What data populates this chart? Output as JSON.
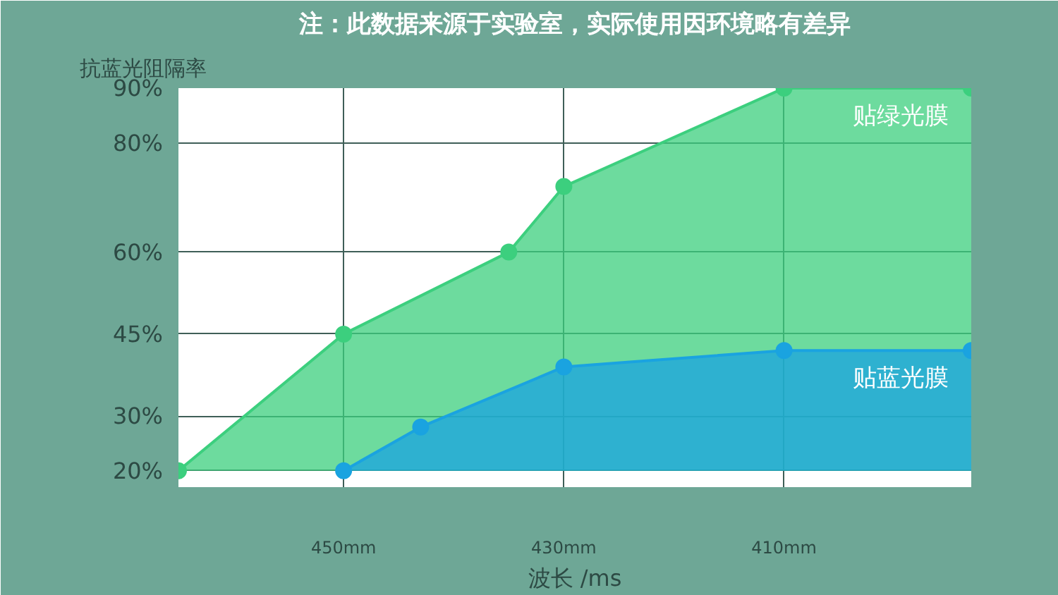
{
  "chart_data": {
    "type": "area",
    "title": "注：此数据来源于实验室，实际使用因环境略有差异",
    "ylabel": "抗蓝光阻隔率",
    "xlabel": "波长 /ms",
    "xlim": [
      465,
      393
    ],
    "xticks": [
      {
        "value": 450,
        "label": "450mm"
      },
      {
        "value": 430,
        "label": "430mm"
      },
      {
        "value": 410,
        "label": "410mm"
      }
    ],
    "ylim": [
      17,
      90
    ],
    "yticks": [
      {
        "value": 20,
        "label": "20%"
      },
      {
        "value": 30,
        "label": "30%"
      },
      {
        "value": 45,
        "label": "45%"
      },
      {
        "value": 60,
        "label": "60%"
      },
      {
        "value": 80,
        "label": "80%"
      },
      {
        "value": 90,
        "label": "90%"
      }
    ],
    "series": [
      {
        "name": "贴绿光膜",
        "color": "#3ccf7e",
        "x": [
          465,
          450,
          435,
          430,
          410,
          393
        ],
        "values": [
          20,
          45,
          60,
          72,
          90,
          90
        ]
      },
      {
        "name": "贴蓝光膜",
        "color": "#1aa3e0",
        "x": [
          450,
          443,
          430,
          410,
          393
        ],
        "values": [
          20,
          28,
          39,
          42,
          42
        ]
      }
    ],
    "grid": true,
    "marker": "circle"
  }
}
